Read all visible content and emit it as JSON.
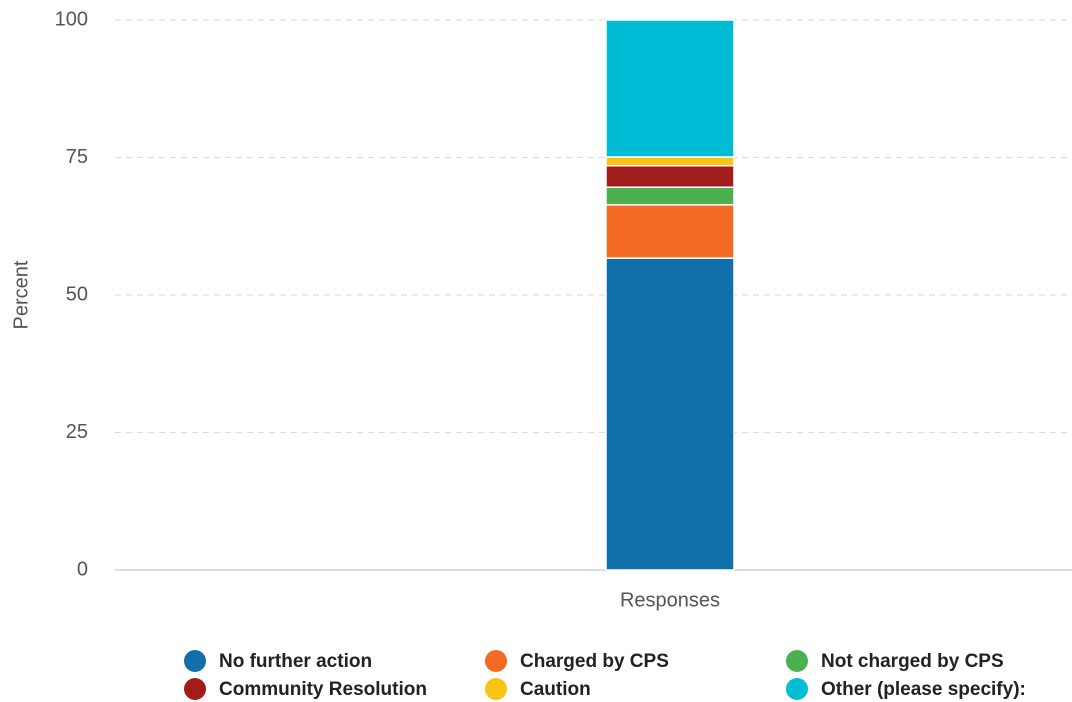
{
  "chart_data": {
    "type": "bar",
    "stacked": true,
    "categories": [
      "Responses"
    ],
    "ylabel": "Percent",
    "ylim": [
      0,
      100
    ],
    "yticks": [
      0,
      25,
      50,
      75,
      100
    ],
    "grid": true,
    "legend": "bottom",
    "series": [
      {
        "name": "No further action",
        "color": "#1170aa",
        "values": [
          56.7
        ]
      },
      {
        "name": "Charged by CPS",
        "color": "#f36a23",
        "values": [
          9.7
        ]
      },
      {
        "name": "Not charged by CPS",
        "color": "#4caf50",
        "values": [
          3.2
        ]
      },
      {
        "name": "Community Resolution",
        "color": "#a31c1c",
        "values": [
          3.9
        ]
      },
      {
        "name": "Caution",
        "color": "#fbc313",
        "values": [
          1.6
        ]
      },
      {
        "name": "Other (please specify):",
        "color": "#00bcd4",
        "values": [
          24.9
        ]
      }
    ]
  }
}
